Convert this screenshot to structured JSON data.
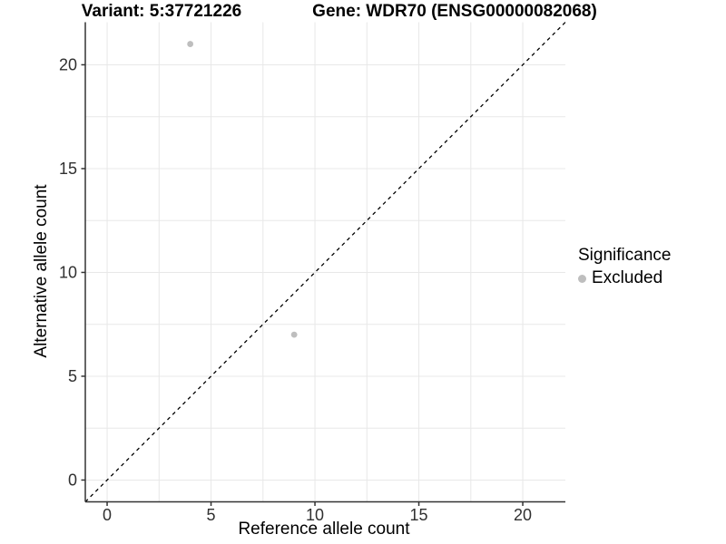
{
  "chart_data": {
    "type": "scatter",
    "title_left": "Variant: 5:37721226",
    "title_right": "Gene: WDR70 (ENSG00000082068)",
    "xlabel": "Reference allele count",
    "ylabel": "Alternative allele count",
    "xlim": [
      -1.05,
      22.05
    ],
    "ylim": [
      -1.05,
      22.05
    ],
    "xticks": [
      0,
      5,
      10,
      15,
      20
    ],
    "yticks": [
      0,
      5,
      10,
      15,
      20
    ],
    "minor_grid_step": 2.5,
    "grid": true,
    "points": [
      {
        "x": 4,
        "y": 21,
        "significance": "Excluded"
      },
      {
        "x": 9,
        "y": 7,
        "significance": "Excluded"
      }
    ],
    "identity_line": {
      "style": "dashed",
      "slope": 1,
      "intercept": 0
    },
    "legend": {
      "position": "right",
      "title": "Significance",
      "items": [
        {
          "label": "Excluded",
          "color": "#bebebe"
        }
      ]
    },
    "colors": {
      "point": "#bebebe",
      "grid": "#e8e8e8",
      "axis": "#333333",
      "tick_label": "#303030",
      "identity_line": "#000000",
      "background": "#ffffff"
    }
  }
}
